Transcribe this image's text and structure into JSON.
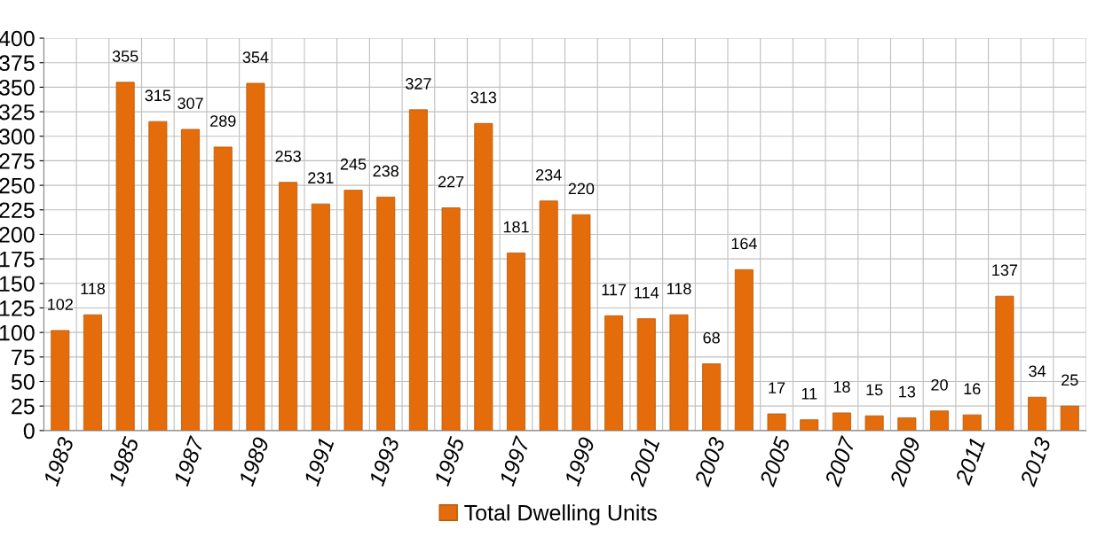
{
  "chart_data": {
    "type": "bar",
    "categories": [
      "1983",
      null,
      "1985",
      null,
      "1987",
      null,
      "1989",
      null,
      "1991",
      null,
      "1993",
      null,
      "1995",
      null,
      "1997",
      null,
      "1999",
      null,
      "2001",
      null,
      "2003",
      null,
      "2005",
      null,
      "2007",
      null,
      "2009",
      null,
      "2011",
      null,
      "2013",
      null
    ],
    "series": [
      {
        "name": "Total Dwelling Units",
        "color": "#e46c0a",
        "values": [
          102,
          118,
          355,
          315,
          307,
          289,
          354,
          253,
          231,
          245,
          238,
          327,
          227,
          313,
          181,
          234,
          220,
          117,
          114,
          118,
          68,
          164,
          17,
          11,
          18,
          15,
          13,
          20,
          16,
          137,
          34,
          25
        ]
      }
    ],
    "ylim": [
      0,
      400
    ],
    "yticks": [
      0,
      25,
      50,
      75,
      100,
      125,
      150,
      175,
      200,
      225,
      250,
      275,
      300,
      325,
      350,
      375,
      400
    ],
    "grid": true,
    "legend": "bottom",
    "data_labels": true
  }
}
